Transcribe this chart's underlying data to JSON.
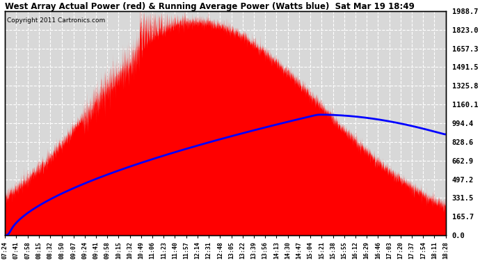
{
  "title": "West Array Actual Power (red) & Running Average Power (Watts blue)  Sat Mar 19 18:49",
  "copyright": "Copyright 2011 Cartronics.com",
  "background_color": "#ffffff",
  "plot_bg_color": "#d8d8d8",
  "grid_color": "#ffffff",
  "title_color": "#000000",
  "copyright_color": "#000000",
  "ytick_labels": [
    1988.7,
    1823.0,
    1657.3,
    1491.5,
    1325.8,
    1160.1,
    994.4,
    828.6,
    662.9,
    497.2,
    331.5,
    165.7,
    0.0
  ],
  "ymax": 1988.7,
  "ymin": 0.0,
  "xtick_labels": [
    "07:24",
    "07:41",
    "07:58",
    "08:15",
    "08:32",
    "08:50",
    "09:07",
    "09:24",
    "09:41",
    "09:58",
    "10:15",
    "10:32",
    "10:49",
    "11:06",
    "11:23",
    "11:40",
    "11:57",
    "12:14",
    "12:31",
    "12:48",
    "13:05",
    "13:22",
    "13:39",
    "13:56",
    "14:13",
    "14:30",
    "14:47",
    "15:04",
    "15:21",
    "15:38",
    "15:55",
    "16:12",
    "16:29",
    "16:46",
    "17:03",
    "17:20",
    "17:37",
    "17:54",
    "18:11",
    "18:28"
  ],
  "red_color": "#ff0000",
  "blue_color": "#0000ff",
  "border_color": "#000000",
  "tick_color": "#000000"
}
